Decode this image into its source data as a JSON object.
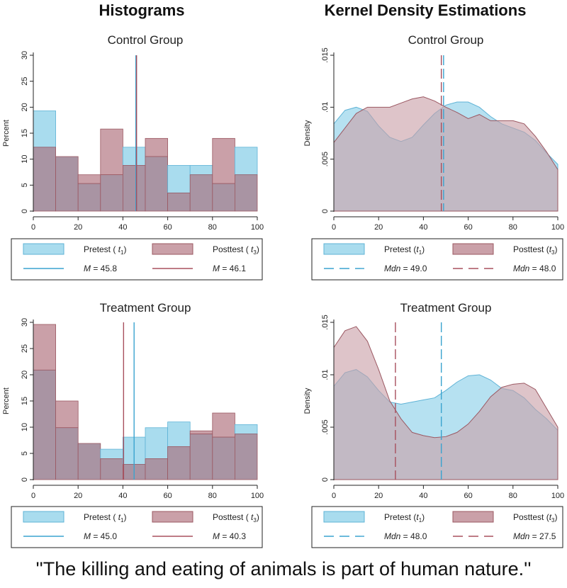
{
  "column_titles": {
    "left": "Histograms",
    "right": "Kernel Density Estimations"
  },
  "caption": "''The killing and eating of animals is part of human nature.''",
  "colors": {
    "pretest_fill": "#a9dcee",
    "pretest_edge": "#5fb3d6",
    "pretest_line": "#3aa3cf",
    "posttest_fill": "#caa0a8",
    "posttest_edge": "#9b5862",
    "posttest_line": "#a8505e",
    "overlap_fill": "#a994a3",
    "axis": "#222222"
  },
  "chart_data": [
    {
      "id": "hist-control",
      "type": "bar",
      "title": "Control Group",
      "ylabel": "Percent",
      "xlabel": "",
      "xlim": [
        0,
        100
      ],
      "ylim": [
        0,
        30
      ],
      "xticks": [
        0,
        20,
        40,
        60,
        80,
        100
      ],
      "yticks": [
        0,
        5,
        10,
        15,
        20,
        25,
        30
      ],
      "bin_edges": [
        0,
        10,
        20,
        30,
        40,
        50,
        60,
        70,
        80,
        90,
        100
      ],
      "series": [
        {
          "name": "Pretest",
          "values": [
            19.3,
            10.5,
            5.3,
            7.0,
            12.3,
            10.5,
            8.8,
            8.8,
            5.3,
            12.3
          ]
        },
        {
          "name": "Posttest",
          "values": [
            12.3,
            10.5,
            7.0,
            15.8,
            8.8,
            14.0,
            3.5,
            7.0,
            14.0,
            7.0
          ]
        }
      ],
      "ref_lines": [
        {
          "series": "Pretest",
          "value": 45.8
        },
        {
          "series": "Posttest",
          "value": 46.1
        }
      ],
      "legend": {
        "entries": [
          {
            "label": "Pretest ( ",
            "sub_base": "t",
            "sub": "1",
            "close": ")"
          },
          {
            "label": "Posttest ( ",
            "sub_base": "t",
            "sub": "3",
            "close": ")"
          }
        ],
        "stats": [
          {
            "label": "M",
            "text": " = 45.8"
          },
          {
            "label": "M",
            "text": " = 46.1"
          }
        ]
      }
    },
    {
      "id": "kde-control",
      "type": "area",
      "title": "Control Group",
      "ylabel": "Density",
      "xlabel": "",
      "xlim": [
        0,
        100
      ],
      "ylim": [
        0,
        0.015
      ],
      "xticks": [
        0,
        20,
        40,
        60,
        80,
        100
      ],
      "yticks": [
        0,
        0.005,
        0.01,
        0.015
      ],
      "ytick_labels": [
        "0",
        ".005",
        ".01",
        ".015"
      ],
      "x": [
        0,
        5,
        10,
        15,
        20,
        25,
        30,
        35,
        40,
        45,
        50,
        55,
        60,
        65,
        70,
        75,
        80,
        85,
        90,
        95,
        100
      ],
      "series": [
        {
          "name": "Pretest",
          "values": [
            0.0084,
            0.0097,
            0.01,
            0.0096,
            0.0082,
            0.0071,
            0.0067,
            0.0071,
            0.0083,
            0.0094,
            0.0102,
            0.0105,
            0.0105,
            0.01,
            0.0091,
            0.0084,
            0.008,
            0.0076,
            0.0068,
            0.0056,
            0.0045
          ]
        },
        {
          "name": "Posttest",
          "values": [
            0.0066,
            0.008,
            0.0094,
            0.01,
            0.01,
            0.01,
            0.0104,
            0.0108,
            0.011,
            0.0106,
            0.01,
            0.0095,
            0.0089,
            0.0093,
            0.0087,
            0.0087,
            0.0087,
            0.0084,
            0.0072,
            0.0057,
            0.004
          ]
        }
      ],
      "ref_lines": [
        {
          "series": "Pretest",
          "value": 49.0,
          "dashed": true
        },
        {
          "series": "Posttest",
          "value": 48.0,
          "dashed": true
        }
      ],
      "legend": {
        "entries": [
          {
            "label": "Pretest (",
            "sub_base": "t",
            "sub": "1",
            "close": ")"
          },
          {
            "label": "Posttest (",
            "sub_base": "t",
            "sub": "3",
            "close": ")"
          }
        ],
        "stats": [
          {
            "label": "Mdn",
            "text": " = 49.0"
          },
          {
            "label": "Mdn",
            "text": " = 48.0"
          }
        ]
      }
    },
    {
      "id": "hist-treatment",
      "type": "bar",
      "title": "Treatment Group",
      "ylabel": "Percent",
      "xlabel": "",
      "xlim": [
        0,
        100
      ],
      "ylim": [
        0,
        30
      ],
      "xticks": [
        0,
        20,
        40,
        60,
        80,
        100
      ],
      "yticks": [
        0,
        5,
        10,
        15,
        20,
        25,
        30
      ],
      "bin_edges": [
        0,
        10,
        20,
        30,
        40,
        50,
        60,
        70,
        80,
        90,
        100
      ],
      "series": [
        {
          "name": "Pretest",
          "values": [
            20.9,
            9.9,
            6.9,
            5.8,
            8.1,
            9.9,
            11.0,
            8.7,
            8.1,
            10.5
          ]
        },
        {
          "name": "Posttest",
          "values": [
            29.6,
            15.0,
            6.9,
            4.0,
            2.9,
            4.0,
            6.3,
            9.3,
            12.7,
            8.7
          ]
        }
      ],
      "ref_lines": [
        {
          "series": "Pretest",
          "value": 45.0
        },
        {
          "series": "Posttest",
          "value": 40.3
        }
      ],
      "legend": {
        "entries": [
          {
            "label": "Pretest ( ",
            "sub_base": "t",
            "sub": "1",
            "close": ")"
          },
          {
            "label": "Posttest ( ",
            "sub_base": "t",
            "sub": "3",
            "close": ")"
          }
        ],
        "stats": [
          {
            "label": "M",
            "text": " = 45.0"
          },
          {
            "label": "M",
            "text": " = 40.3"
          }
        ]
      }
    },
    {
      "id": "kde-treatment",
      "type": "area",
      "title": "Treatment Group",
      "ylabel": "Density",
      "xlabel": "",
      "xlim": [
        0,
        100
      ],
      "ylim": [
        0,
        0.015
      ],
      "xticks": [
        0,
        20,
        40,
        60,
        80,
        100
      ],
      "yticks": [
        0,
        0.005,
        0.01,
        0.015
      ],
      "ytick_labels": [
        "0",
        ".005",
        ".01",
        ".015"
      ],
      "x": [
        0,
        5,
        10,
        15,
        20,
        25,
        30,
        35,
        40,
        45,
        50,
        55,
        60,
        65,
        70,
        75,
        80,
        85,
        90,
        95,
        100
      ],
      "series": [
        {
          "name": "Pretest",
          "values": [
            0.0089,
            0.0102,
            0.0105,
            0.0098,
            0.0085,
            0.0074,
            0.0072,
            0.0074,
            0.0076,
            0.0078,
            0.0085,
            0.0093,
            0.0099,
            0.01,
            0.0095,
            0.0087,
            0.0085,
            0.0078,
            0.0067,
            0.0058,
            0.0047
          ]
        },
        {
          "name": "Posttest",
          "values": [
            0.0126,
            0.0142,
            0.0146,
            0.0132,
            0.0105,
            0.0075,
            0.0058,
            0.0045,
            0.0042,
            0.004,
            0.0041,
            0.0045,
            0.0053,
            0.0065,
            0.0079,
            0.0088,
            0.0091,
            0.0092,
            0.0086,
            0.0068,
            0.005
          ]
        }
      ],
      "ref_lines": [
        {
          "series": "Pretest",
          "value": 48.0,
          "dashed": true
        },
        {
          "series": "Posttest",
          "value": 27.5,
          "dashed": true
        }
      ],
      "legend": {
        "entries": [
          {
            "label": "Pretest (",
            "sub_base": "t",
            "sub": "1",
            "close": ")"
          },
          {
            "label": "Posttest (",
            "sub_base": "t",
            "sub": "3",
            "close": ")"
          }
        ],
        "stats": [
          {
            "label": "Mdn",
            "text": " = 48.0"
          },
          {
            "label": "Mdn",
            "text": " = 27.5"
          }
        ]
      }
    }
  ]
}
